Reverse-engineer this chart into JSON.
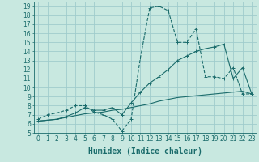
{
  "xlabel": "Humidex (Indice chaleur)",
  "xlim": [
    -0.5,
    23.5
  ],
  "ylim": [
    5,
    19.5
  ],
  "xticks": [
    0,
    1,
    2,
    3,
    4,
    5,
    6,
    7,
    8,
    9,
    10,
    11,
    12,
    13,
    14,
    15,
    16,
    17,
    18,
    19,
    20,
    21,
    22,
    23
  ],
  "yticks": [
    5,
    6,
    7,
    8,
    9,
    10,
    11,
    12,
    13,
    14,
    15,
    16,
    17,
    18,
    19
  ],
  "background_color": "#c8e8e0",
  "grid_color": "#a0cccc",
  "line_color": "#1a6b6b",
  "curve1_x": [
    0,
    1,
    2,
    3,
    4,
    5,
    6,
    7,
    8,
    9,
    10,
    11,
    12,
    13,
    14,
    15,
    16,
    17,
    18,
    19,
    20,
    21,
    22,
    23
  ],
  "curve1_y": [
    6.5,
    7.0,
    7.2,
    7.5,
    8.0,
    8.0,
    7.3,
    7.0,
    6.5,
    5.2,
    6.5,
    13.3,
    18.8,
    19.0,
    18.5,
    15.0,
    15.0,
    16.5,
    11.2,
    11.2,
    11.0,
    12.2,
    9.3,
    9.3
  ],
  "curve2_x": [
    0,
    2,
    3,
    4,
    5,
    6,
    7,
    8,
    9,
    10,
    11,
    12,
    13,
    14,
    15,
    16,
    17,
    18,
    19,
    20,
    21,
    22,
    23
  ],
  "curve2_y": [
    6.3,
    6.5,
    6.8,
    7.2,
    7.8,
    7.5,
    7.5,
    7.8,
    7.0,
    8.3,
    9.5,
    10.5,
    11.2,
    12.0,
    13.0,
    13.5,
    14.0,
    14.3,
    14.5,
    14.8,
    11.0,
    12.2,
    9.3
  ],
  "curve3_x": [
    0,
    1,
    2,
    3,
    4,
    5,
    6,
    7,
    8,
    9,
    10,
    11,
    12,
    13,
    14,
    15,
    16,
    17,
    18,
    19,
    20,
    21,
    22,
    23
  ],
  "curve3_y": [
    6.3,
    6.4,
    6.5,
    6.7,
    6.9,
    7.1,
    7.2,
    7.3,
    7.5,
    7.6,
    7.8,
    8.0,
    8.2,
    8.5,
    8.7,
    8.9,
    9.0,
    9.1,
    9.2,
    9.3,
    9.4,
    9.5,
    9.6,
    9.3
  ],
  "tick_fontsize": 5.5,
  "label_fontsize": 7.0
}
